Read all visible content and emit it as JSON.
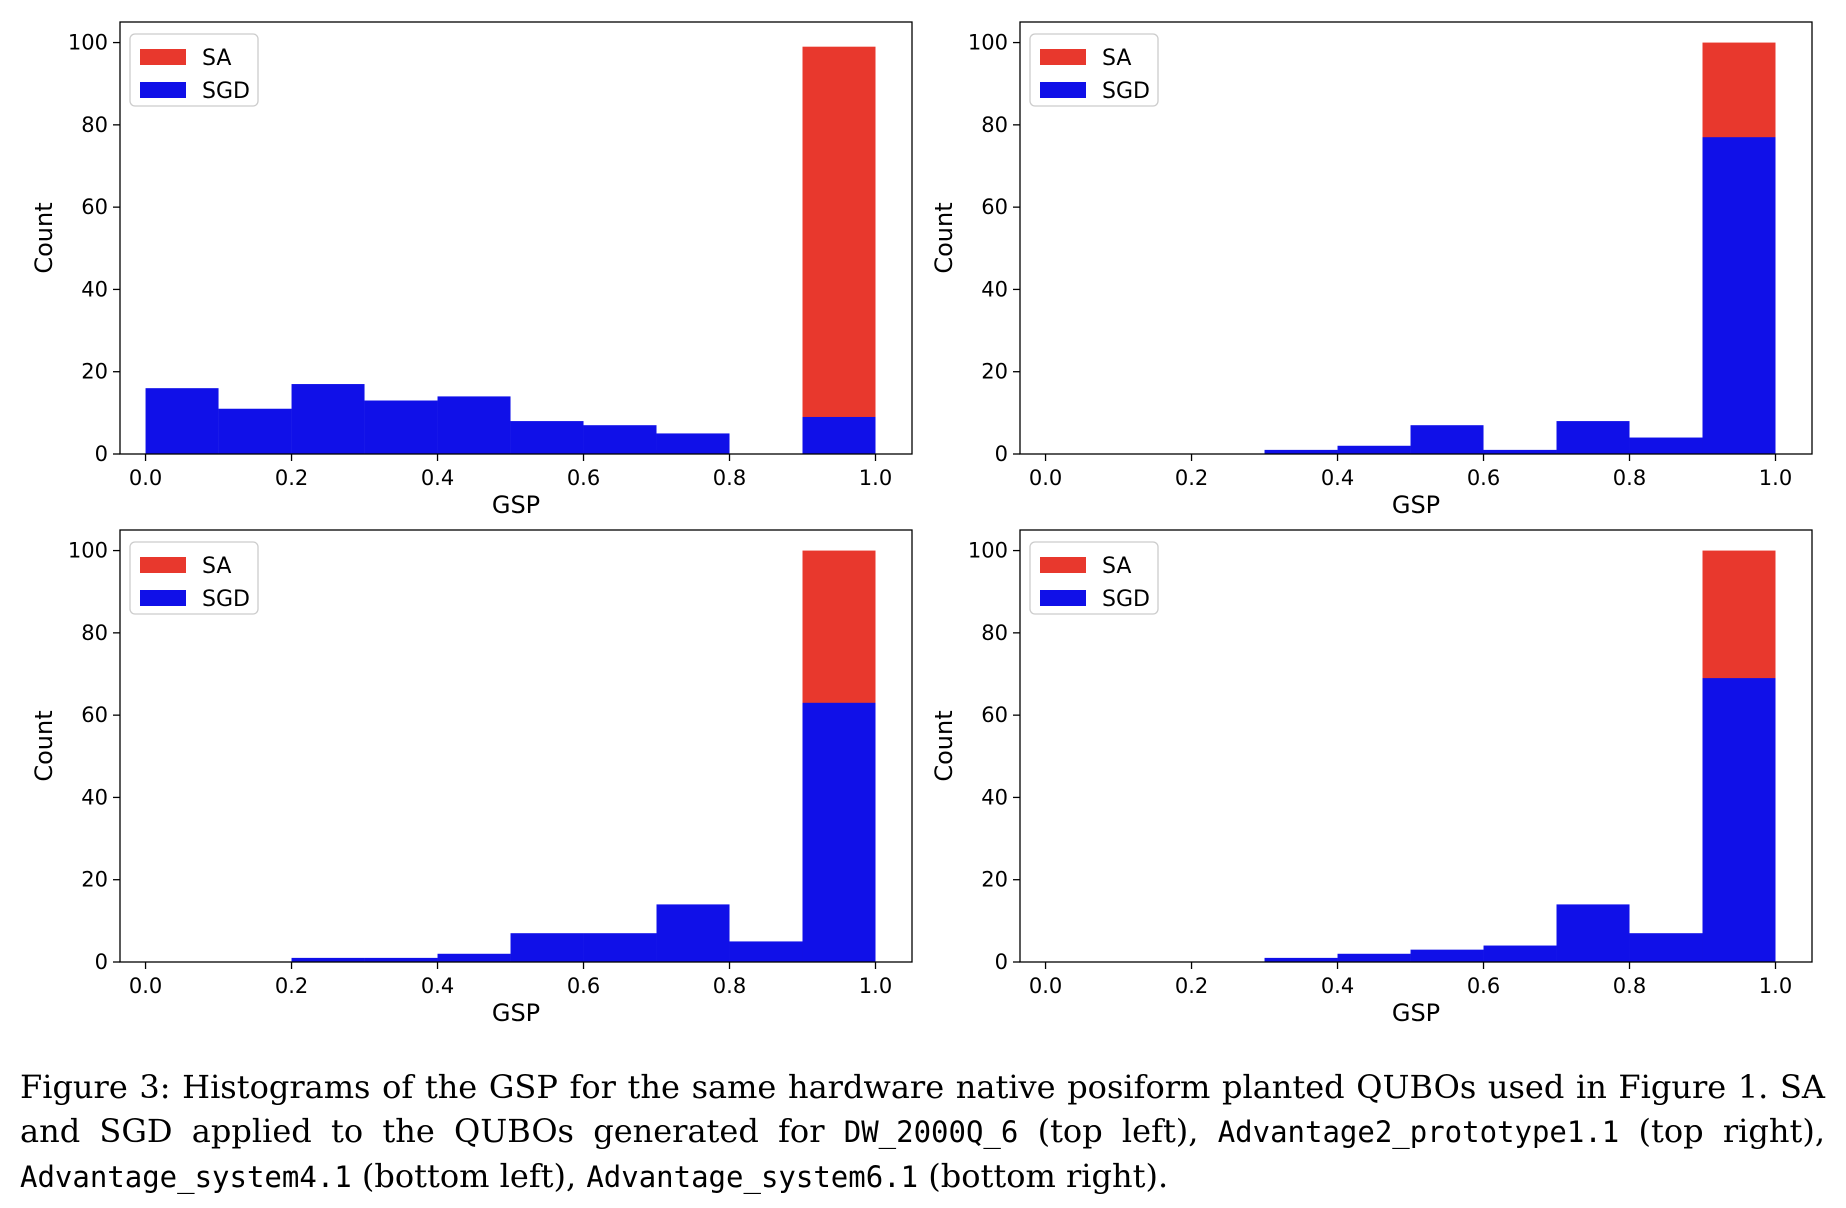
{
  "colors": {
    "SA": "#e8382d",
    "SGD": "#1010e8"
  },
  "chart_data": [
    {
      "type": "bar",
      "position": "top-left",
      "xlabel": "GSP",
      "ylabel": "Count",
      "xlim": [
        0,
        1
      ],
      "ylim": [
        0,
        105
      ],
      "xticks": [
        "0.0",
        "0.2",
        "0.4",
        "0.6",
        "0.8",
        "1.0"
      ],
      "yticks": [
        "0",
        "20",
        "40",
        "60",
        "80",
        "100"
      ],
      "legend": "top-left",
      "bin_edges": [
        0.0,
        0.1,
        0.2,
        0.3,
        0.4,
        0.5,
        0.6,
        0.7,
        0.8,
        0.9,
        1.0
      ],
      "series": [
        {
          "name": "SA",
          "values": [
            0,
            0,
            0,
            0,
            0,
            0,
            0,
            1,
            0,
            99
          ]
        },
        {
          "name": "SGD",
          "values": [
            16,
            11,
            17,
            13,
            14,
            8,
            7,
            5,
            0,
            9
          ]
        }
      ]
    },
    {
      "type": "bar",
      "position": "top-right",
      "xlabel": "GSP",
      "ylabel": "Count",
      "xlim": [
        0,
        1
      ],
      "ylim": [
        0,
        105
      ],
      "xticks": [
        "0.0",
        "0.2",
        "0.4",
        "0.6",
        "0.8",
        "1.0"
      ],
      "yticks": [
        "0",
        "20",
        "40",
        "60",
        "80",
        "100"
      ],
      "legend": "top-left",
      "bin_edges": [
        0.0,
        0.1,
        0.2,
        0.3,
        0.4,
        0.5,
        0.6,
        0.7,
        0.8,
        0.9,
        1.0
      ],
      "series": [
        {
          "name": "SA",
          "values": [
            0,
            0,
            0,
            0,
            0,
            0,
            0,
            0,
            0,
            100
          ]
        },
        {
          "name": "SGD",
          "values": [
            0,
            0,
            0,
            1,
            2,
            7,
            1,
            8,
            4,
            77
          ]
        }
      ]
    },
    {
      "type": "bar",
      "position": "bottom-left",
      "xlabel": "GSP",
      "ylabel": "Count",
      "xlim": [
        0,
        1
      ],
      "ylim": [
        0,
        105
      ],
      "xticks": [
        "0.0",
        "0.2",
        "0.4",
        "0.6",
        "0.8",
        "1.0"
      ],
      "yticks": [
        "0",
        "20",
        "40",
        "60",
        "80",
        "100"
      ],
      "legend": "top-left",
      "bin_edges": [
        0.0,
        0.1,
        0.2,
        0.3,
        0.4,
        0.5,
        0.6,
        0.7,
        0.8,
        0.9,
        1.0
      ],
      "series": [
        {
          "name": "SA",
          "values": [
            0,
            0,
            0,
            0,
            0,
            0,
            0,
            0,
            0,
            100
          ]
        },
        {
          "name": "SGD",
          "values": [
            0,
            0,
            1,
            1,
            2,
            7,
            7,
            14,
            5,
            63
          ]
        }
      ]
    },
    {
      "type": "bar",
      "position": "bottom-right",
      "xlabel": "GSP",
      "ylabel": "Count",
      "xlim": [
        0,
        1
      ],
      "ylim": [
        0,
        105
      ],
      "xticks": [
        "0.0",
        "0.2",
        "0.4",
        "0.6",
        "0.8",
        "1.0"
      ],
      "yticks": [
        "0",
        "20",
        "40",
        "60",
        "80",
        "100"
      ],
      "legend": "top-left",
      "bin_edges": [
        0.0,
        0.1,
        0.2,
        0.3,
        0.4,
        0.5,
        0.6,
        0.7,
        0.8,
        0.9,
        1.0
      ],
      "series": [
        {
          "name": "SA",
          "values": [
            0,
            0,
            0,
            0,
            0,
            0,
            0,
            0,
            0,
            100
          ]
        },
        {
          "name": "SGD",
          "values": [
            0,
            0,
            0,
            1,
            2,
            3,
            4,
            14,
            7,
            69
          ]
        }
      ]
    }
  ],
  "caption": {
    "part1": "Figure 3: Histograms of the GSP for the same hardware native posiform planted QUBOs used in Figure 1. SA and SGD applied to the QUBOs generated for ",
    "sys1": "DW_2000Q_6",
    "part2": " (top left), ",
    "sys2": "Advantage2_prototype1.1",
    "part3": " (top right), ",
    "sys3": "Advantage_system4.1",
    "part4": " (bottom left), ",
    "sys4": "Advantage_system6.1",
    "part5": " (bottom right)."
  }
}
